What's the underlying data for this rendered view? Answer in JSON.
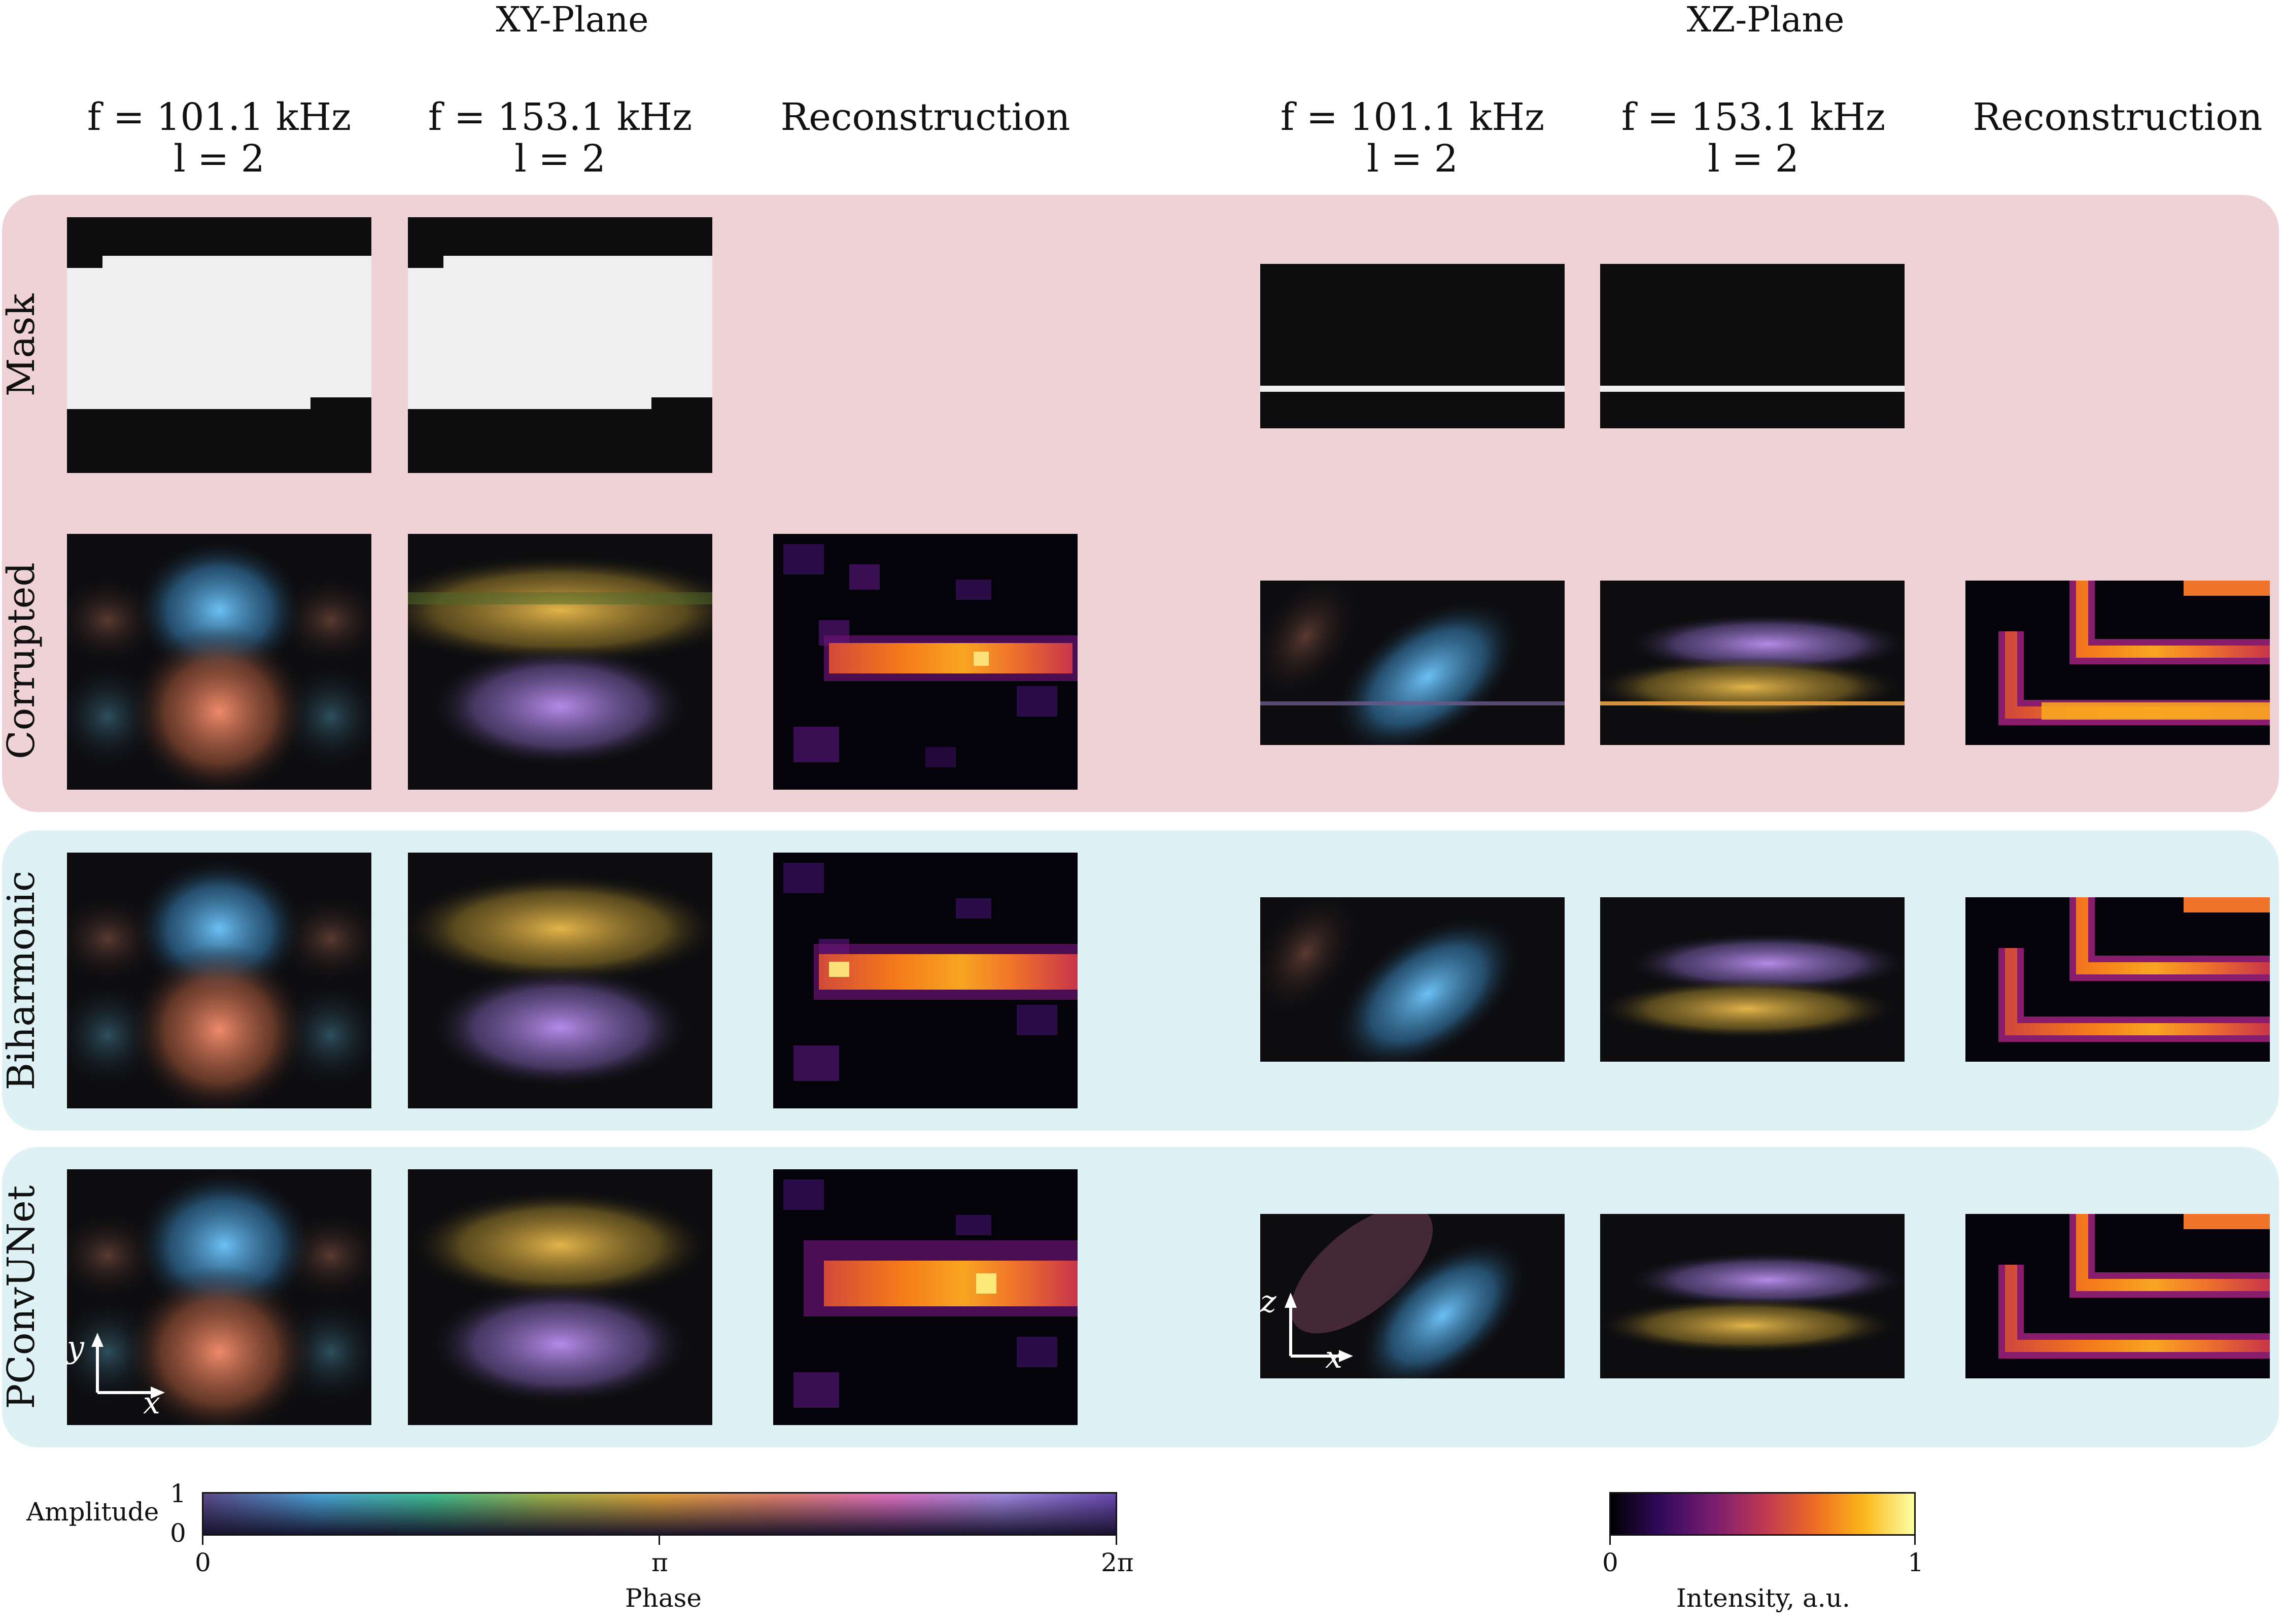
{
  "headers": {
    "xy_plane": "XY-Plane",
    "xz_plane": "XZ-Plane",
    "xy": [
      {
        "f": "f = 101.1 kHz",
        "l": "l = 2"
      },
      {
        "f": "f = 153.1 kHz",
        "l": "l = 2"
      },
      {
        "single": "Reconstruction"
      }
    ],
    "xz": [
      {
        "f": "f = 101.1 kHz",
        "l": "l = 2"
      },
      {
        "f": "f = 153.1 kHz",
        "l": "l = 2"
      },
      {
        "single": "Reconstruction"
      }
    ]
  },
  "rows": {
    "mask": "Mask",
    "corrupted": "Corrupted",
    "biharmonic": "Biharmonic",
    "pconvunet": "PConvUNet"
  },
  "axes": {
    "xy": {
      "vertical": "y",
      "horizontal": "x"
    },
    "xz": {
      "vertical": "z",
      "horizontal": "x"
    }
  },
  "colorbars": {
    "phase": {
      "amplitude_label": "Amplitude",
      "amp_top": "1",
      "amp_bottom": "0",
      "ticks": [
        "0",
        "π",
        "2π"
      ],
      "title": "Phase",
      "colors": [
        "#5b4a8a",
        "#4aa3d8",
        "#3fbf8f",
        "#9fb24a",
        "#e0a03a",
        "#e0806a",
        "#e070c0",
        "#a08ae0",
        "#6a4ab0"
      ]
    },
    "intensity": {
      "ticks": [
        "0",
        "1"
      ],
      "title": "Intensity, a.u.",
      "colors": [
        "#000004",
        "#320a5e",
        "#781c6d",
        "#bc3754",
        "#ed6925",
        "#fbb61a",
        "#fcffa4"
      ]
    }
  }
}
